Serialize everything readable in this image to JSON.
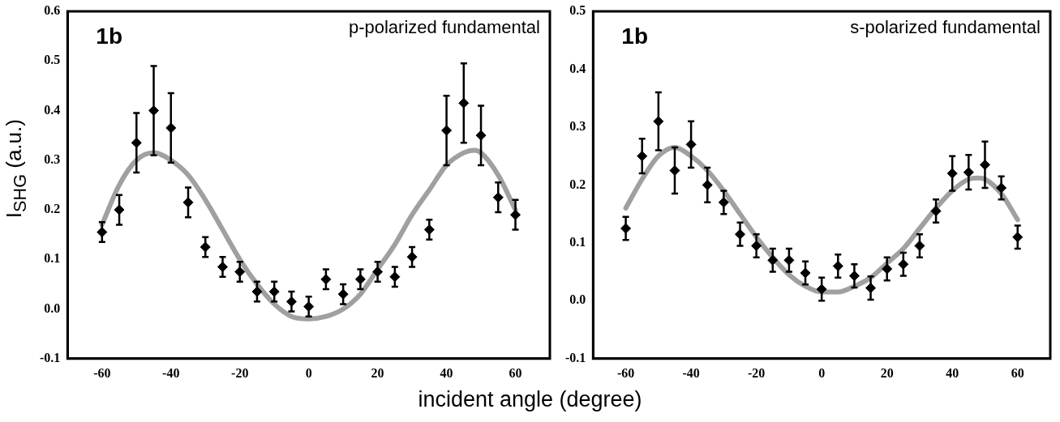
{
  "chart_data": [
    {
      "type": "scatter",
      "ylabel": "I$_{SHG}$ (a.u.)",
      "xlabel": "incident angle (degree)",
      "annotations": [
        "1b",
        "p-polarized fundamental"
      ],
      "x": [
        -60,
        -55,
        -50,
        -45,
        -40,
        -35,
        -30,
        -25,
        -20,
        -15,
        -10,
        -5,
        0,
        5,
        10,
        15,
        20,
        25,
        30,
        35,
        40,
        45,
        50,
        55,
        60
      ],
      "series": [
        {
          "color": "#000000",
          "marker": "diamond",
          "values": [
            0.155,
            0.2,
            0.335,
            0.4,
            0.365,
            0.215,
            0.125,
            0.085,
            0.075,
            0.035,
            0.035,
            0.015,
            0.005,
            0.06,
            0.03,
            0.06,
            0.075,
            0.065,
            0.105,
            0.16,
            0.36,
            0.415,
            0.35,
            0.225,
            0.19
          ],
          "errors": [
            0.02,
            0.03,
            0.06,
            0.09,
            0.07,
            0.03,
            0.02,
            0.02,
            0.02,
            0.02,
            0.02,
            0.02,
            0.02,
            0.02,
            0.02,
            0.02,
            0.02,
            0.02,
            0.02,
            0.02,
            0.07,
            0.08,
            0.06,
            0.03,
            0.03
          ]
        },
        {
          "type": "line",
          "color": "#a0a0a0",
          "x": [
            -60,
            -55,
            -50,
            -45,
            -40,
            -35,
            -30,
            -25,
            -20,
            -15,
            -10,
            -5,
            0,
            5,
            10,
            15,
            20,
            25,
            30,
            35,
            40,
            45,
            48,
            50,
            55,
            60
          ],
          "values": [
            0.17,
            0.25,
            0.3,
            0.315,
            0.3,
            0.27,
            0.22,
            0.16,
            0.1,
            0.05,
            0.01,
            -0.015,
            -0.02,
            -0.015,
            0.0,
            0.03,
            0.08,
            0.13,
            0.19,
            0.24,
            0.29,
            0.315,
            0.32,
            0.315,
            0.27,
            0.2
          ]
        }
      ],
      "grid": false,
      "legend": false,
      "xlim": [
        -70,
        70
      ],
      "xticks": [
        -60,
        -40,
        -20,
        0,
        20,
        40,
        60
      ],
      "ylim": [
        -0.1,
        0.6
      ],
      "yticks": [
        -0.1,
        {
          "value": 0,
          "label": "0.0"
        },
        0.1,
        0.2,
        0.3,
        0.4,
        0.5,
        0.6
      ]
    },
    {
      "type": "scatter",
      "annotations": [
        "1b",
        "s-polarized fundamental"
      ],
      "x": [
        -60,
        -55,
        -50,
        -45,
        -40,
        -35,
        -30,
        -25,
        -20,
        -15,
        -10,
        -5,
        0,
        5,
        10,
        15,
        20,
        25,
        30,
        35,
        40,
        45,
        50,
        55,
        60
      ],
      "series": [
        {
          "color": "#000000",
          "marker": "diamond",
          "values": [
            0.125,
            0.25,
            0.31,
            0.225,
            0.27,
            0.2,
            0.17,
            0.115,
            0.095,
            0.07,
            0.07,
            0.048,
            0.02,
            0.06,
            0.043,
            0.022,
            0.055,
            0.063,
            0.095,
            0.155,
            0.22,
            0.222,
            0.235,
            0.195,
            0.11
          ],
          "errors": [
            0.02,
            0.03,
            0.05,
            0.04,
            0.04,
            0.03,
            0.02,
            0.02,
            0.02,
            0.02,
            0.02,
            0.02,
            0.02,
            0.02,
            0.02,
            0.02,
            0.02,
            0.02,
            0.02,
            0.02,
            0.03,
            0.03,
            0.04,
            0.02,
            0.02
          ]
        },
        {
          "type": "line",
          "color": "#a0a0a0",
          "x": [
            -60,
            -55,
            -50,
            -45,
            -40,
            -35,
            -30,
            -25,
            -20,
            -15,
            -10,
            -5,
            0,
            5,
            10,
            15,
            20,
            25,
            30,
            35,
            40,
            45,
            48,
            50,
            55,
            60
          ],
          "values": [
            0.16,
            0.21,
            0.25,
            0.265,
            0.25,
            0.225,
            0.19,
            0.15,
            0.11,
            0.075,
            0.045,
            0.025,
            0.015,
            0.015,
            0.025,
            0.04,
            0.065,
            0.09,
            0.125,
            0.16,
            0.19,
            0.21,
            0.212,
            0.21,
            0.185,
            0.14
          ]
        }
      ],
      "grid": false,
      "legend": false,
      "xlim": [
        -70,
        70
      ],
      "xticks": [
        -60,
        -40,
        -20,
        0,
        20,
        40,
        60
      ],
      "ylim": [
        -0.1,
        0.5
      ],
      "yticks": [
        -0.1,
        {
          "value": 0,
          "label": "0.0"
        },
        0.1,
        0.2,
        0.3,
        0.4,
        0.5
      ]
    }
  ]
}
